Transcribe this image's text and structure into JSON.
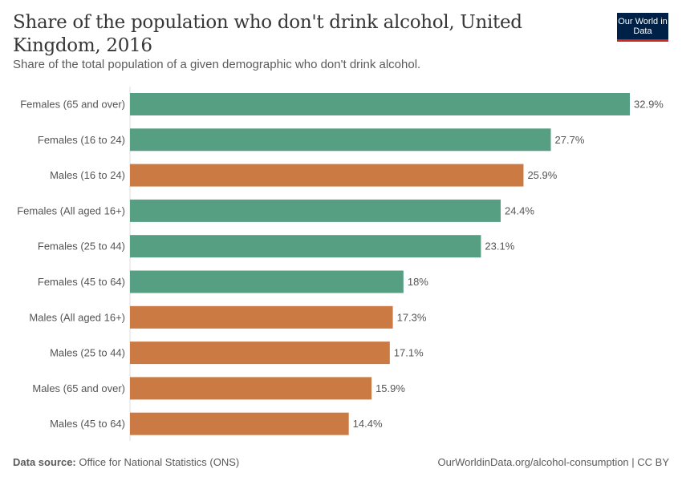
{
  "header": {
    "title": "Share of the population who don't drink alcohol, United Kingdom, 2016",
    "subtitle": "Share of the total population of a given demographic who don't drink alcohol.",
    "logo": "Our World in Data"
  },
  "footer": {
    "source_label": "Data source:",
    "source": "Office for National Statistics (ONS)",
    "link": "OurWorldinData.org/alcohol-consumption | CC BY"
  },
  "colors": {
    "female": "#579f83",
    "male": "#cc7a43"
  },
  "chart_data": {
    "type": "bar",
    "orientation": "horizontal",
    "unit": "%",
    "categories": [
      "Females (65 and over)",
      "Females (16 to 24)",
      "Males (16 to 24)",
      "Females (All aged 16+)",
      "Females (25 to 44)",
      "Females (45 to 64)",
      "Males (All aged 16+)",
      "Males (25 to 44)",
      "Males (65 and over)",
      "Males (45 to 64)"
    ],
    "values": [
      32.9,
      27.7,
      25.9,
      24.4,
      23.1,
      18,
      17.3,
      17.1,
      15.9,
      14.4
    ],
    "labels": [
      "32.9%",
      "27.7%",
      "25.9%",
      "24.4%",
      "23.1%",
      "18%",
      "17.3%",
      "17.1%",
      "15.9%",
      "14.4%"
    ],
    "groups": [
      "female",
      "female",
      "male",
      "female",
      "female",
      "female",
      "male",
      "male",
      "male",
      "male"
    ],
    "xlim": [
      0,
      32.9
    ],
    "grid": false
  }
}
